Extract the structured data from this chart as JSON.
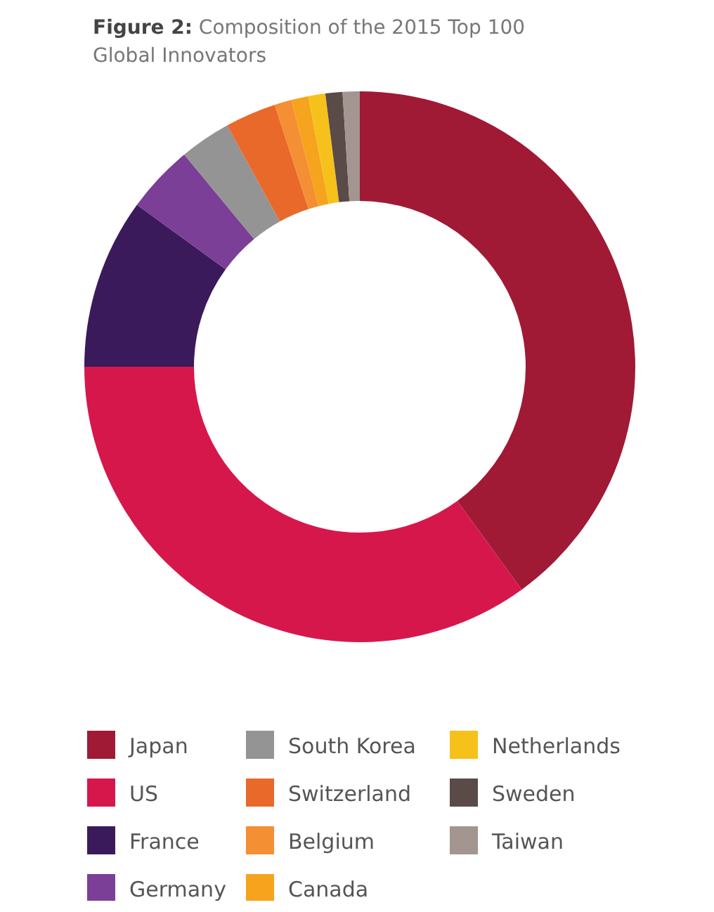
{
  "chart_data": {
    "type": "donut",
    "title": "Figure 2: Composition of the 2015 Top 100 Global Innovators",
    "categories": [
      "Japan",
      "US",
      "France",
      "Germany",
      "South Korea",
      "Switzerland",
      "Belgium",
      "Canada",
      "Netherlands",
      "Sweden",
      "Taiwan"
    ],
    "values": [
      40,
      35,
      10,
      4,
      3,
      3,
      1,
      1,
      1,
      1,
      1
    ],
    "colors": [
      "#a01a35",
      "#d6174b",
      "#3b1a5c",
      "#7b3f98",
      "#949494",
      "#e8692a",
      "#f48f33",
      "#f6a31d",
      "#f7c11b",
      "#5a4a48",
      "#a39590"
    ],
    "legend": "bottom"
  }
}
